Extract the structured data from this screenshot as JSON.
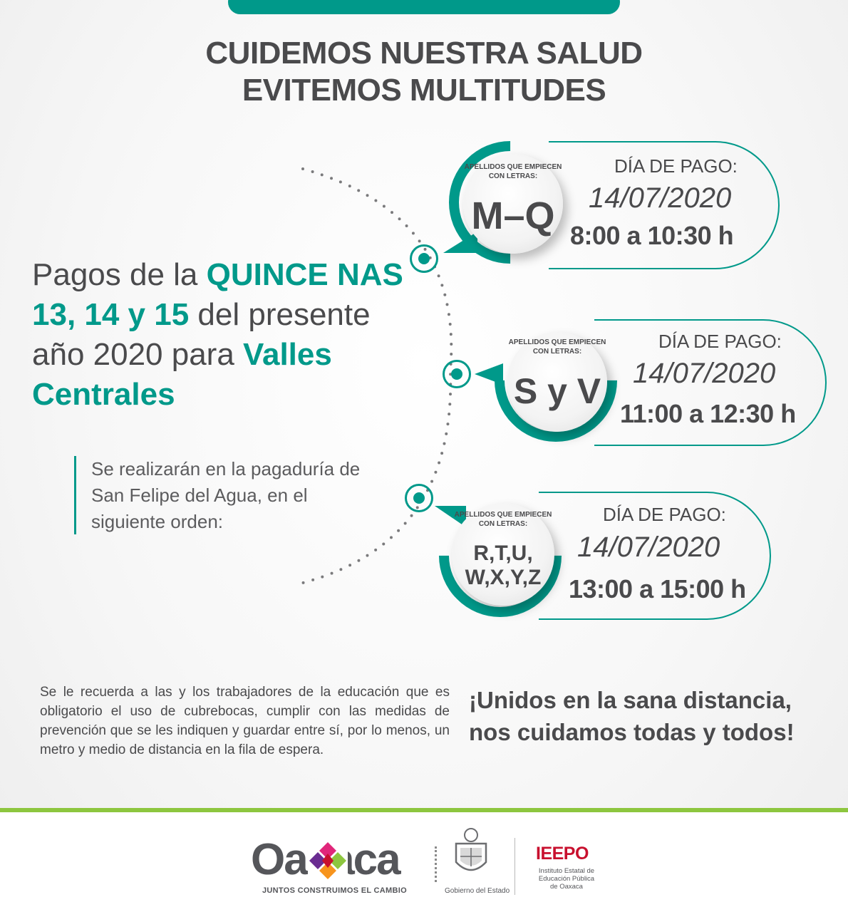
{
  "header": {
    "line1": "CUIDEMOS NUESTRA SALUD",
    "line2": "EVITEMOS MULTITUDES"
  },
  "intro": {
    "part1": "Pagos de la ",
    "highlight1": "QUINCE NAS",
    "highlight2": "13, 14 y 15",
    "part2": " del presente año 2020 para ",
    "highlight3": "Valles Centrales"
  },
  "note": "Se realizarán en la pagaduría de San Felipe del Agua, en el siguiente orden:",
  "groups": [
    {
      "label": "APELLIDOS QUE EMPIECEN CON LETRAS:",
      "letters": "M–Q",
      "pay_label": "DÍA DE PAGO:",
      "date": "14/07/2020",
      "time": "8:00 a 10:30 h"
    },
    {
      "label": "APELLIDOS QUE EMPIECEN CON LETRAS:",
      "letters": "S y V",
      "pay_label": "DÍA DE PAGO:",
      "date": "14/07/2020",
      "time": "11:00 a 12:30 h"
    },
    {
      "label": "APELLIDOS QUE EMPIECEN CON LETRAS:",
      "letters_line1": "R,T,U,",
      "letters_line2": "W,X,Y,Z",
      "pay_label": "DÍA DE PAGO:",
      "date": "14/07/2020",
      "time": "13:00 a 15:00 h"
    }
  ],
  "reminder": "Se le recuerda a las y los trabajadores de la educación que es obligatorio el uso de cubrebocas, cumplir con las medidas de prevención que se les indiquen y guardar entre sí, por lo menos, un metro y medio de distancia en la fila de espera.",
  "slogan": {
    "line1": "¡Unidos en la sana distancia,",
    "line2": "nos cuidamos todas y todos!"
  },
  "footer": {
    "oaxaca_logo": "Oaxaca",
    "oaxaca_tagline": "JUNTOS CONSTRUIMOS EL CAMBIO",
    "gov_label": "Gobierno del Estado",
    "ieepo": "IEEPO",
    "ieepo_sub": "Instituto Estatal de Educación Pública de Oaxaca"
  },
  "colors": {
    "teal": "#00998a",
    "gray_text": "#4a4a4c",
    "green_bar": "#8dc63f",
    "ieepo_red": "#c8102e"
  }
}
